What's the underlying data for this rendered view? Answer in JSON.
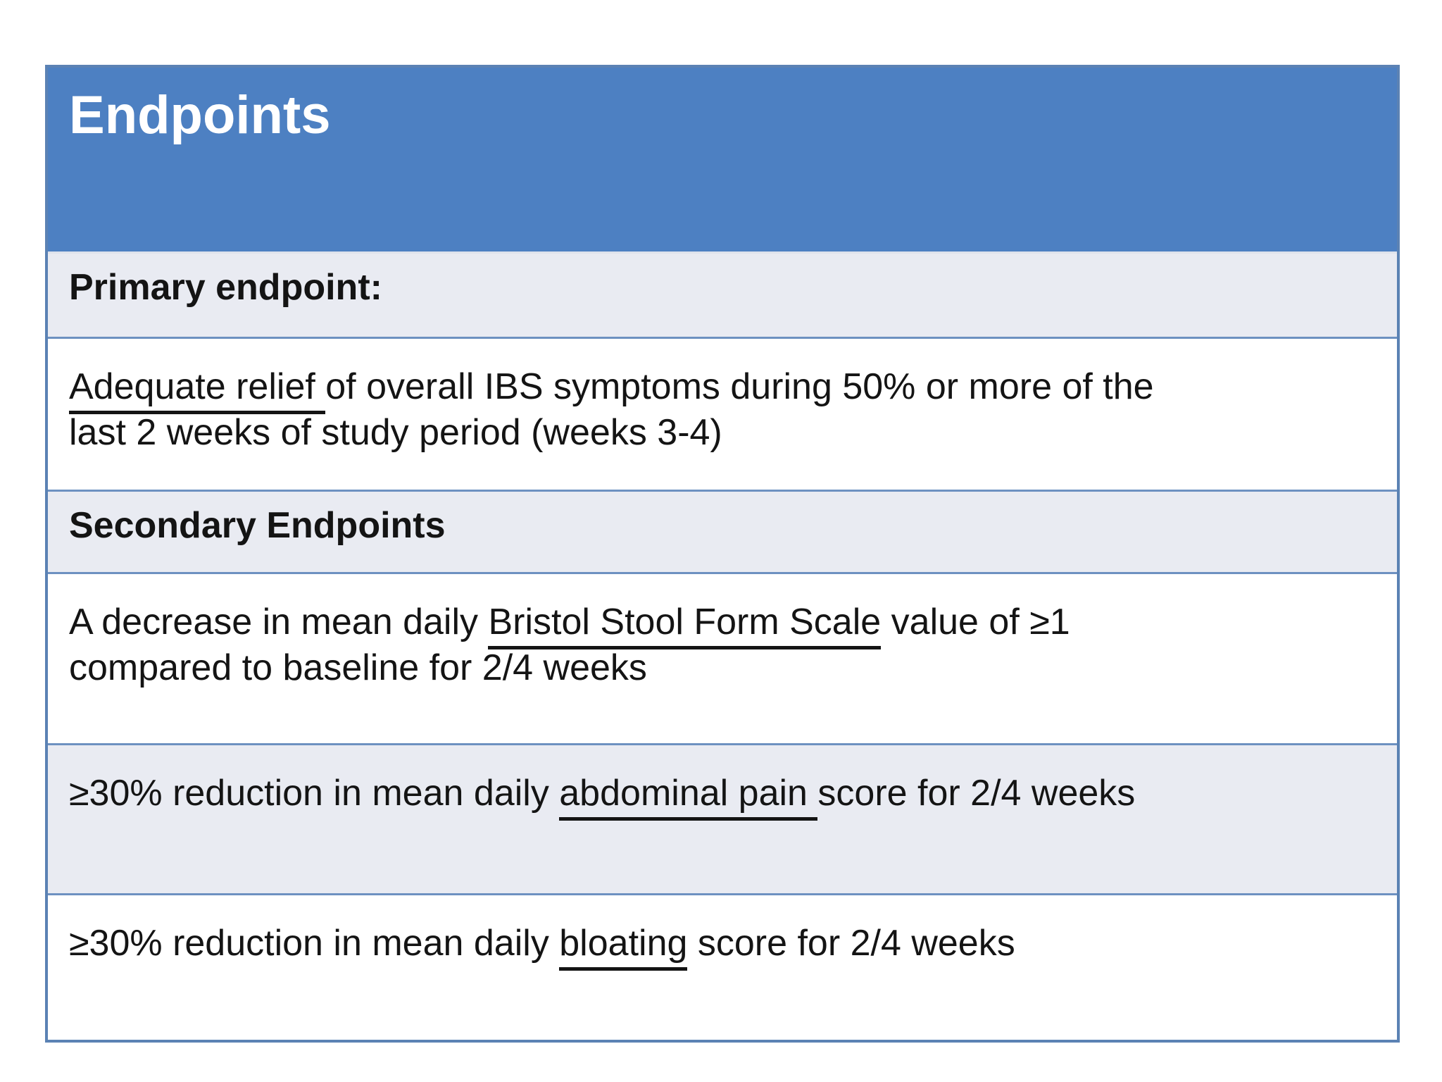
{
  "slide": {
    "title": "Endpoints"
  },
  "colors": {
    "header_blue": "#4d80c2",
    "outer_border_blue": "#5b82b4",
    "row_separator_blue": "#6d91c1",
    "banded_row_bg": "#e9ebf2",
    "body_text": "#141414",
    "title_text": "#ffffff"
  },
  "table": {
    "title": "Endpoints",
    "rows": [
      {
        "kind": "section-label",
        "band": true,
        "bold": true,
        "lines": [
          [
            {
              "text": "Primary endpoint:",
              "underline": false
            }
          ]
        ]
      },
      {
        "kind": "body",
        "band": false,
        "bold": false,
        "lines": [
          [
            {
              "text": "Adequate relief ",
              "underline": true
            },
            {
              "text": "of overall IBS symptoms during 50% or more of the",
              "underline": false
            }
          ],
          [
            {
              "text": "last 2 weeks of study period (weeks 3-4)",
              "underline": false
            }
          ]
        ]
      },
      {
        "kind": "section-label",
        "band": true,
        "bold": true,
        "lines": [
          [
            {
              "text": "Secondary Endpoints",
              "underline": false
            }
          ]
        ]
      },
      {
        "kind": "body",
        "band": false,
        "bold": false,
        "lines": [
          [
            {
              "text": "A decrease in mean daily ",
              "underline": false
            },
            {
              "text": "Bristol Stool Form Scale",
              "underline": true
            },
            {
              "text": " value of ≥1",
              "underline": false
            }
          ],
          [
            {
              "text": "compared to baseline for 2/4 weeks",
              "underline": false
            }
          ]
        ]
      },
      {
        "kind": "body",
        "band": true,
        "bold": false,
        "lines": [
          [
            {
              "text": "≥30% reduction in mean daily ",
              "underline": false
            },
            {
              "text": "abdominal pain ",
              "underline": true
            },
            {
              "text": "score for 2/4 weeks",
              "underline": false
            }
          ]
        ]
      },
      {
        "kind": "body",
        "band": false,
        "bold": false,
        "lines": [
          [
            {
              "text": "≥30% reduction in mean daily ",
              "underline": false
            },
            {
              "text": "bloating",
              "underline": true
            },
            {
              "text": " score for 2/4 weeks",
              "underline": false
            }
          ]
        ]
      }
    ]
  }
}
